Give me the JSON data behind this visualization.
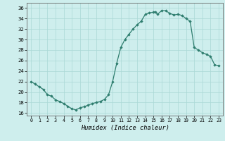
{
  "x": [
    0,
    0.5,
    1,
    1.5,
    2,
    2.5,
    3,
    3.5,
    4,
    4.5,
    5,
    5.5,
    6,
    6.5,
    7,
    7.5,
    8,
    8.5,
    9,
    9.5,
    10,
    10.5,
    11,
    11.5,
    12,
    12.5,
    13,
    13.5,
    14,
    14.5,
    15,
    15.2,
    15.5,
    16,
    16.5,
    17,
    17.5,
    18,
    18.5,
    19,
    19.5,
    20,
    20.5,
    21,
    21.5,
    22,
    22.5,
    23
  ],
  "y": [
    22,
    21.5,
    21,
    20.5,
    19.5,
    19.2,
    18.5,
    18.2,
    17.8,
    17.3,
    16.8,
    16.6,
    17.0,
    17.2,
    17.5,
    17.8,
    18.0,
    18.2,
    18.6,
    19.5,
    22.0,
    25.5,
    28.5,
    30.0,
    31.0,
    32.0,
    32.8,
    33.5,
    34.8,
    35.1,
    35.2,
    35.3,
    34.8,
    35.5,
    35.5,
    35.0,
    34.7,
    34.8,
    34.6,
    34.0,
    33.5,
    28.5,
    28.0,
    27.5,
    27.2,
    26.8,
    25.2,
    25.0
  ],
  "xlabel": "Humidex (Indice chaleur)",
  "xlim": [
    -0.5,
    23.5
  ],
  "ylim": [
    15.5,
    37.0
  ],
  "yticks": [
    16,
    18,
    20,
    22,
    24,
    26,
    28,
    30,
    32,
    34,
    36
  ],
  "xticks": [
    0,
    1,
    2,
    3,
    4,
    5,
    6,
    7,
    8,
    9,
    10,
    11,
    12,
    13,
    14,
    15,
    16,
    17,
    18,
    19,
    20,
    21,
    22,
    23
  ],
  "line_color": "#2e7d6e",
  "marker_color": "#2e7d6e",
  "bg_color": "#ceeeed",
  "grid_color": "#aad8d6",
  "border_color": "#666666"
}
